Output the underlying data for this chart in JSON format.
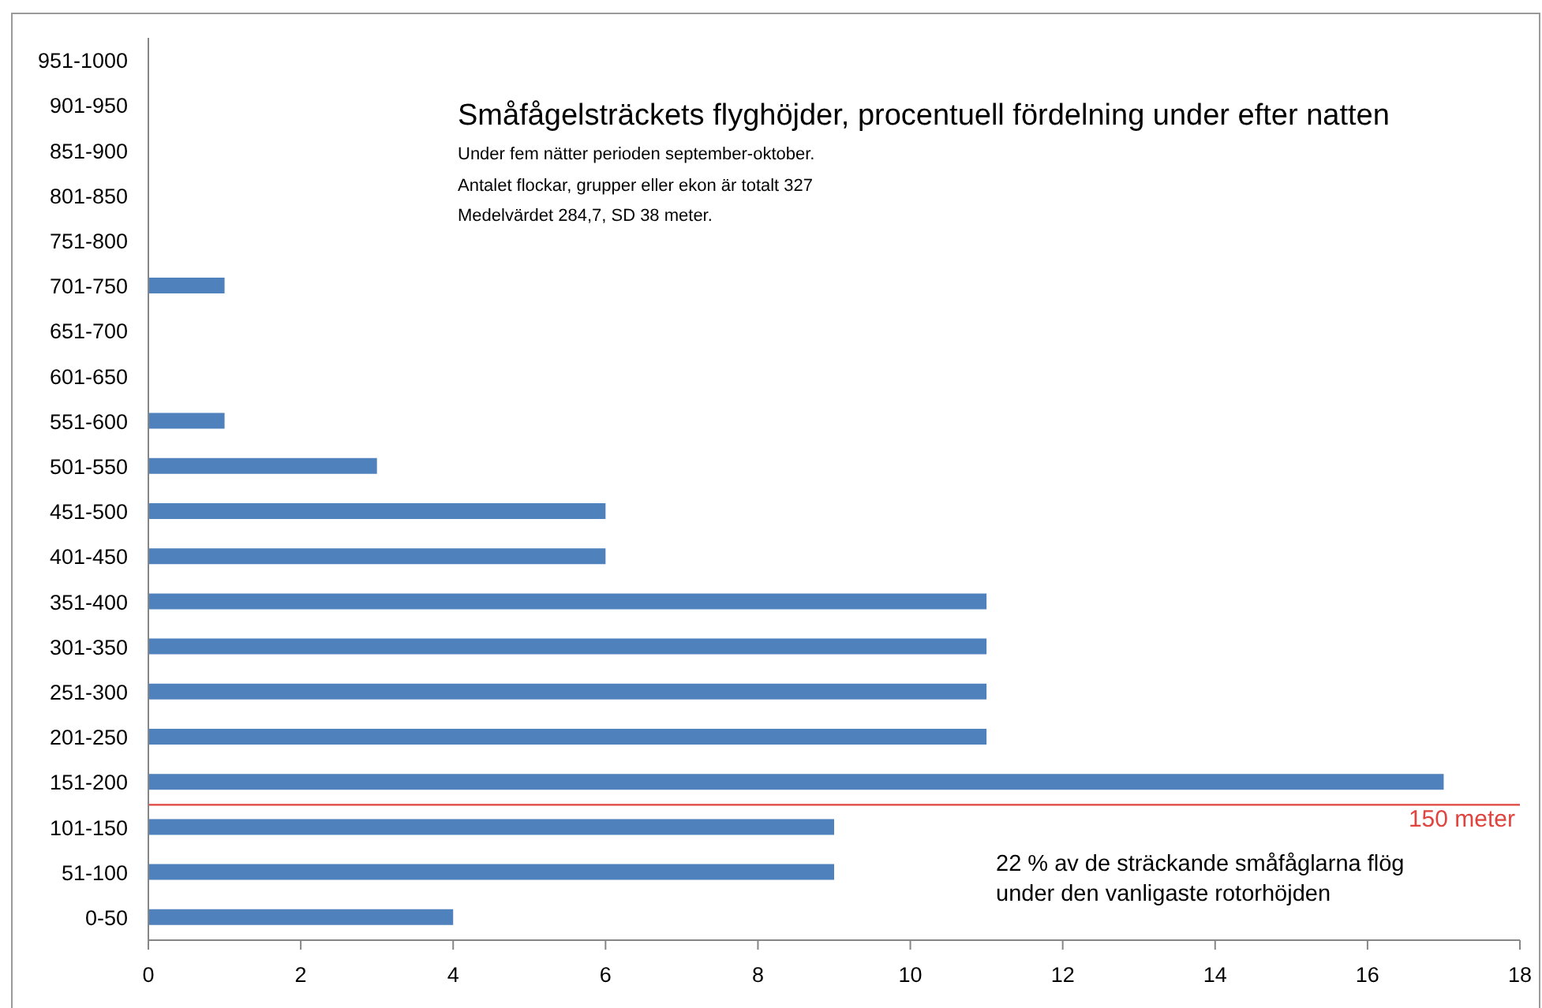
{
  "chart_data": {
    "type": "bar",
    "orientation": "horizontal",
    "title": "Småfågelsträckets flyghöjder, procentuell fördelning under efter natten",
    "subtitle": "Under fem nätter perioden september-oktober.\nAntalet flockar, grupper eller ekon är totalt 327\nMedelvärdet 284,7, SD 38 meter.",
    "annotations": [
      "22 % av de sträckande småfåglarna flög under den vanligaste rotorhöjden"
    ],
    "categories": [
      "951-1000",
      "901-950",
      "851-900",
      "801-850",
      "751-800",
      "701-750",
      "651-700",
      "601-650",
      "551-600",
      "501-550",
      "451-500",
      "401-450",
      "351-400",
      "301-350",
      "251-300",
      "201-250",
      "151-200",
      "101-150",
      "51-100",
      "0-50"
    ],
    "values": [
      0,
      0,
      0,
      0,
      0,
      1,
      0,
      0,
      1,
      3,
      6,
      6,
      11,
      11,
      11,
      11,
      17,
      9,
      9,
      4
    ],
    "color": "#4f81bd",
    "xlim": [
      0,
      18
    ],
    "xticks": [
      0,
      2,
      4,
      6,
      8,
      10,
      12,
      14,
      16,
      18
    ],
    "ref_lines": [
      {
        "axis": "y",
        "value": "101-150",
        "label": "150 meter",
        "color": "#e0443e"
      }
    ]
  }
}
